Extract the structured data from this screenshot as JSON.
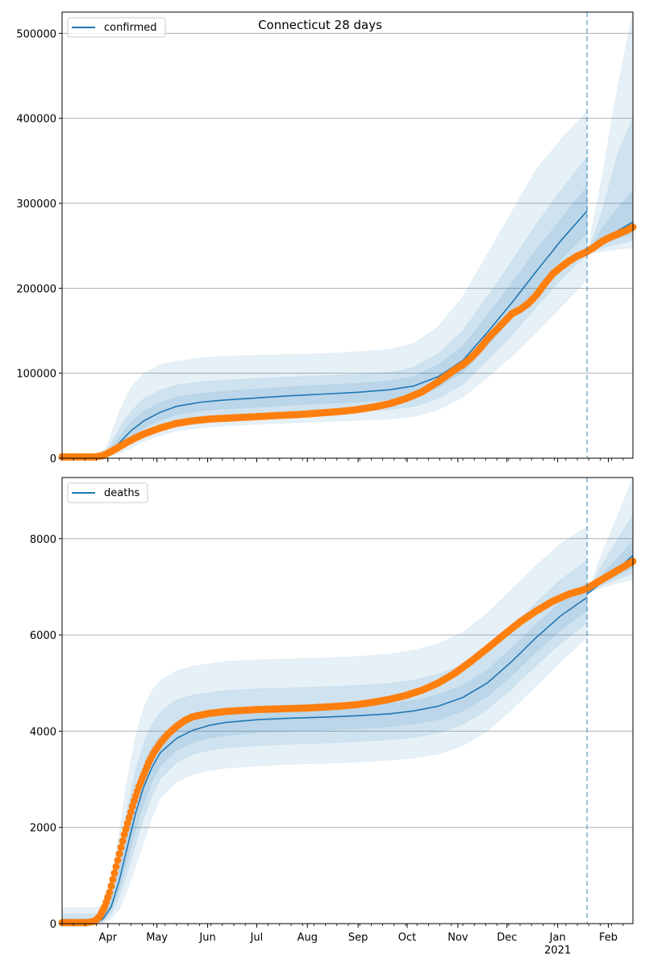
{
  "chart_data": [
    {
      "type": "line",
      "title": "Connecticut 28 days",
      "legend": [
        "confirmed"
      ],
      "legend_placement": "top-left",
      "xlabel": "",
      "ylabel": "",
      "ylim": [
        0,
        525000
      ],
      "yticks": [
        0,
        100000,
        200000,
        300000,
        400000,
        500000
      ],
      "ytick_labels": [
        "0",
        "100000",
        "200000",
        "300000",
        "400000",
        "500000"
      ],
      "grid": true,
      "x_axis_units": "days since 2020-03-04",
      "xlim": [
        0,
        349
      ],
      "forecast_start_day": 321,
      "model": {
        "days": [
          0,
          20,
          27,
          35,
          42,
          50,
          60,
          70,
          85,
          100,
          120,
          140,
          160,
          180,
          200,
          215,
          230,
          245,
          260,
          275,
          290,
          305,
          321
        ],
        "values": [
          0,
          0,
          4000,
          18000,
          32000,
          44000,
          54000,
          61000,
          66000,
          68500,
          71000,
          73500,
          75500,
          77500,
          80500,
          85000,
          96000,
          115000,
          148000,
          183000,
          220000,
          256000,
          291000
        ]
      },
      "bands": [
        {
          "level": "outer",
          "lower": [
            0,
            0,
            1000,
            5000,
            12000,
            20000,
            27000,
            32000,
            36000,
            38000,
            40000,
            41500,
            43000,
            44500,
            46000,
            49000,
            57000,
            72000,
            95000,
            120000,
            148000,
            178000,
            210000
          ],
          "upper": [
            3000,
            3000,
            12000,
            55000,
            83000,
            100000,
            110000,
            114000,
            118000,
            120000,
            121000,
            122000,
            123000,
            125000,
            128000,
            135000,
            155000,
            190000,
            240000,
            290000,
            340000,
            375000,
            408000
          ]
        },
        {
          "level": "middle",
          "lower": [
            0,
            0,
            2000,
            9000,
            19000,
            28000,
            36000,
            42000,
            46000,
            48000,
            50000,
            52000,
            53500,
            55000,
            57000,
            61000,
            70000,
            87000,
            115000,
            145000,
            178000,
            210000,
            240000
          ],
          "upper": [
            1500,
            1500,
            8000,
            35000,
            55000,
            70000,
            80000,
            86000,
            90000,
            92000,
            94000,
            95500,
            97000,
            98500,
            101000,
            107000,
            123000,
            150000,
            190000,
            232000,
            275000,
            315000,
            355000
          ]
        },
        {
          "level": "inner",
          "lower": [
            0,
            0,
            3000,
            13000,
            25000,
            36000,
            45000,
            51000,
            56000,
            58000,
            60000,
            62500,
            64500,
            66000,
            69000,
            73000,
            83000,
            101000,
            132000,
            165000,
            200000,
            234000,
            265000
          ],
          "upper": [
            800,
            800,
            6000,
            25000,
            42000,
            55000,
            65000,
            72000,
            76000,
            79000,
            81500,
            84000,
            86000,
            88000,
            91000,
            96000,
            110000,
            132000,
            168000,
            206000,
            245000,
            282000,
            320000
          ]
        }
      ],
      "forecast": {
        "days": [
          321,
          330,
          340,
          349
        ],
        "values": [
          240000,
          256000,
          268000,
          278000
        ],
        "bands": [
          {
            "level": "outer",
            "lower": [
              240000,
              243000,
              246000,
              248000
            ],
            "upper": [
              240000,
              330000,
              440000,
              525000
            ]
          },
          {
            "level": "middle",
            "lower": [
              240000,
              247000,
              252000,
              256000
            ],
            "upper": [
              240000,
              290000,
              360000,
              400000
            ]
          },
          {
            "level": "inner",
            "lower": [
              240000,
              251000,
              259000,
              264000
            ],
            "upper": [
              240000,
              270000,
              295000,
              315000
            ]
          }
        ]
      },
      "observed": {
        "days": [
          0,
          10,
          20,
          25,
          28,
          32,
          36,
          40,
          45,
          50,
          55,
          60,
          70,
          80,
          90,
          100,
          110,
          120,
          130,
          140,
          150,
          160,
          170,
          180,
          190,
          200,
          210,
          220,
          230,
          235,
          240,
          245,
          250,
          255,
          260,
          265,
          270,
          275,
          280,
          285,
          290,
          295,
          300,
          305,
          310,
          315,
          320,
          325,
          330,
          335,
          340,
          345,
          349
        ],
        "values": [
          1500,
          1500,
          1500,
          3000,
          6000,
          10000,
          14500,
          19000,
          24000,
          28500,
          32000,
          35500,
          41000,
          44000,
          46000,
          47000,
          48000,
          49000,
          50000,
          51000,
          52000,
          53500,
          55000,
          57000,
          60000,
          64000,
          70000,
          78000,
          90000,
          97000,
          104000,
          110000,
          118000,
          128000,
          140000,
          150000,
          160000,
          170000,
          175000,
          182000,
          192000,
          205000,
          217000,
          225000,
          232000,
          238000,
          242000,
          248000,
          255000,
          260000,
          264000,
          268000,
          272000
        ]
      },
      "xticks": {
        "months": [
          "Apr",
          "May",
          "Jun",
          "Jul",
          "Aug",
          "Sep",
          "Oct",
          "Nov",
          "Dec",
          "Jan",
          "Feb"
        ],
        "month_days": [
          28,
          58,
          89,
          119,
          150,
          181,
          211,
          242,
          272,
          303,
          334
        ],
        "year_label": "2021",
        "labels_visible": false
      }
    },
    {
      "type": "line",
      "title": "",
      "legend": [
        "deaths"
      ],
      "legend_placement": "top-left",
      "xlabel": "",
      "ylabel": "",
      "ylim": [
        0,
        9270
      ],
      "yticks": [
        0,
        2000,
        4000,
        6000,
        8000
      ],
      "ytick_labels": [
        "0",
        "2000",
        "4000",
        "6000",
        "8000"
      ],
      "grid": true,
      "x_axis_units": "days since 2020-03-04",
      "xlim": [
        0,
        349
      ],
      "forecast_start_day": 321,
      "model": {
        "days": [
          0,
          20,
          25,
          30,
          35,
          40,
          45,
          50,
          55,
          60,
          70,
          80,
          90,
          100,
          120,
          140,
          160,
          180,
          200,
          215,
          230,
          245,
          260,
          275,
          290,
          305,
          321
        ],
        "values": [
          0,
          0,
          100,
          350,
          900,
          1600,
          2300,
          2850,
          3250,
          3550,
          3850,
          4020,
          4120,
          4180,
          4240,
          4270,
          4290,
          4320,
          4360,
          4420,
          4520,
          4700,
          5000,
          5450,
          5950,
          6400,
          6780
        ]
      },
      "bands": [
        {
          "level": "outer",
          "lower": [
            0,
            0,
            0,
            100,
            300,
            700,
            1200,
            1700,
            2200,
            2600,
            2950,
            3100,
            3180,
            3230,
            3280,
            3310,
            3330,
            3360,
            3400,
            3440,
            3520,
            3700,
            4000,
            4450,
            4950,
            5450,
            5950
          ],
          "upper": [
            330,
            330,
            400,
            900,
            1900,
            3000,
            3900,
            4500,
            4850,
            5050,
            5250,
            5350,
            5400,
            5450,
            5480,
            5500,
            5520,
            5550,
            5600,
            5680,
            5820,
            6050,
            6450,
            6950,
            7450,
            7900,
            8250
          ]
        },
        {
          "level": "middle",
          "lower": [
            0,
            0,
            30,
            200,
            550,
            1050,
            1650,
            2200,
            2650,
            3000,
            3350,
            3520,
            3600,
            3650,
            3700,
            3730,
            3750,
            3780,
            3820,
            3870,
            3960,
            4140,
            4450,
            4880,
            5370,
            5830,
            6250
          ],
          "upper": [
            200,
            200,
            250,
            650,
            1450,
            2400,
            3200,
            3750,
            4150,
            4400,
            4650,
            4750,
            4800,
            4850,
            4880,
            4900,
            4920,
            4950,
            4990,
            5060,
            5180,
            5380,
            5720,
            6180,
            6680,
            7150,
            7550
          ]
        },
        {
          "level": "inner",
          "lower": [
            0,
            0,
            60,
            270,
            720,
            1300,
            1950,
            2500,
            2950,
            3270,
            3600,
            3770,
            3860,
            3910,
            3970,
            4000,
            4020,
            4050,
            4090,
            4150,
            4240,
            4420,
            4720,
            5160,
            5650,
            6100,
            6500
          ],
          "upper": [
            100,
            100,
            150,
            500,
            1150,
            2000,
            2750,
            3300,
            3650,
            3900,
            4150,
            4270,
            4350,
            4400,
            4450,
            4480,
            4500,
            4530,
            4570,
            4640,
            4760,
            4950,
            5270,
            5730,
            6230,
            6680,
            7080
          ]
        }
      ],
      "forecast": {
        "days": [
          321,
          330,
          340,
          349
        ],
        "values": [
          6850,
          7100,
          7380,
          7650
        ],
        "bands": [
          {
            "level": "outer",
            "lower": [
              6850,
              6980,
              7080,
              7150
            ],
            "upper": [
              6850,
              7700,
              8500,
              9270
            ]
          },
          {
            "level": "middle",
            "lower": [
              6850,
              7030,
              7170,
              7280
            ],
            "upper": [
              6850,
              7450,
              8000,
              8500
            ]
          },
          {
            "level": "inner",
            "lower": [
              6850,
              7060,
              7250,
              7400
            ],
            "upper": [
              6850,
              7250,
              7600,
              7950
            ]
          }
        ]
      },
      "observed": {
        "days": [
          0,
          15,
          20,
          23,
          26,
          29,
          32,
          35,
          38,
          41,
          44,
          47,
          50,
          53,
          56,
          60,
          65,
          70,
          75,
          80,
          90,
          100,
          110,
          120,
          130,
          140,
          150,
          160,
          170,
          180,
          190,
          200,
          210,
          220,
          230,
          240,
          250,
          260,
          270,
          280,
          290,
          300,
          310,
          320,
          325,
          330,
          335,
          340,
          345,
          349
        ],
        "values": [
          20,
          20,
          50,
          150,
          350,
          650,
          1050,
          1450,
          1850,
          2200,
          2550,
          2850,
          3100,
          3350,
          3550,
          3750,
          3950,
          4100,
          4220,
          4300,
          4370,
          4410,
          4430,
          4450,
          4460,
          4470,
          4480,
          4500,
          4520,
          4550,
          4600,
          4660,
          4740,
          4850,
          5000,
          5200,
          5450,
          5720,
          6000,
          6270,
          6500,
          6700,
          6850,
          6950,
          7050,
          7150,
          7250,
          7350,
          7450,
          7530
        ]
      },
      "xticks": {
        "months": [
          "Apr",
          "May",
          "Jun",
          "Jul",
          "Aug",
          "Sep",
          "Oct",
          "Nov",
          "Dec",
          "Jan",
          "Feb"
        ],
        "month_days": [
          28,
          58,
          89,
          119,
          150,
          181,
          211,
          242,
          272,
          303,
          334
        ],
        "year_label": "2021",
        "labels_visible": true
      }
    }
  ],
  "colors": {
    "model_line": "#1f77b4",
    "band": "#1f77b4",
    "observed": "#ff7f0e",
    "forecast_marker": "#1f77b4",
    "grid": "#b0b0b0",
    "axis": "#000000"
  }
}
